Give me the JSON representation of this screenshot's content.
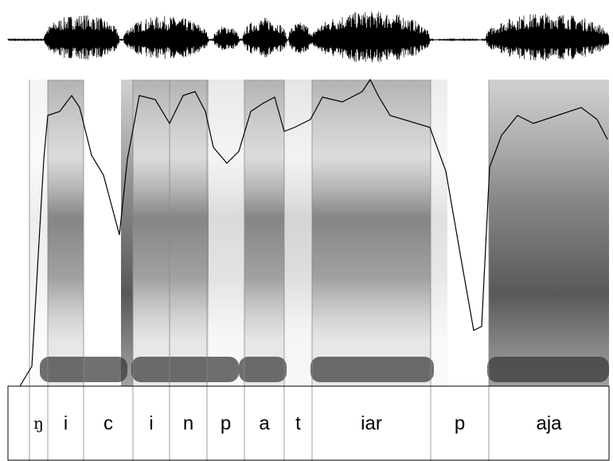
{
  "segments": [
    "ŋ",
    "i",
    "c",
    "i",
    "n",
    "p",
    "a",
    "t",
    "iar",
    "p",
    "aja"
  ]
}
